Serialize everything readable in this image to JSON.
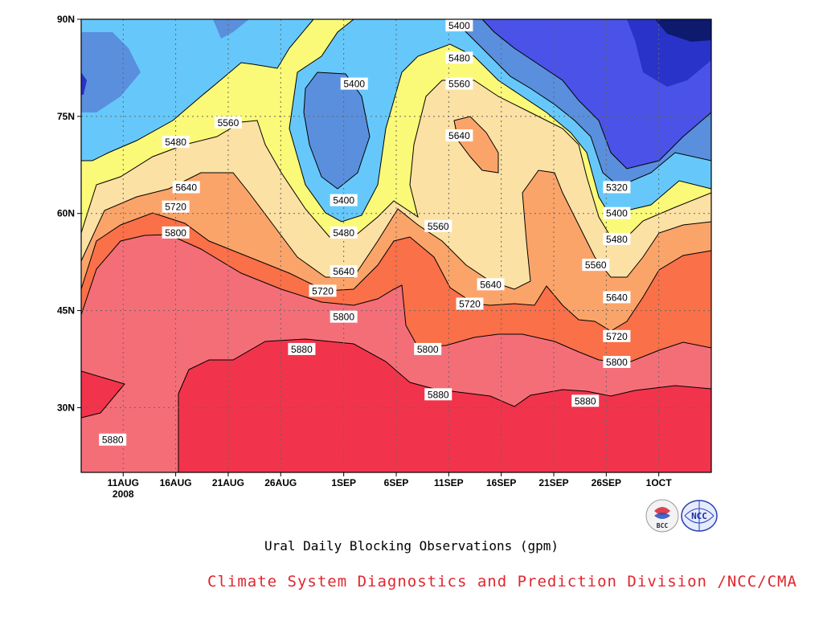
{
  "caption": "Ural Daily Blocking Observations (gpm)",
  "credit": "Climate System Diagnostics and Prediction Division /NCC/CMA",
  "logos": [
    {
      "name": "bcc-logo-icon",
      "text": "BCC"
    },
    {
      "name": "ncc-logo-icon",
      "text": "NCC"
    }
  ],
  "chart_data": {
    "type": "contour",
    "title": "",
    "units": "gpm",
    "x_ticks": [
      {
        "day": 5,
        "label": "11AUG",
        "sublabel": "2008"
      },
      {
        "day": 10,
        "label": "16AUG"
      },
      {
        "day": 15,
        "label": "21AUG"
      },
      {
        "day": 20,
        "label": "26AUG"
      },
      {
        "day": 26,
        "label": "1SEP"
      },
      {
        "day": 31,
        "label": "6SEP"
      },
      {
        "day": 36,
        "label": "11SEP"
      },
      {
        "day": 41,
        "label": "16SEP"
      },
      {
        "day": 46,
        "label": "21SEP"
      },
      {
        "day": 51,
        "label": "26SEP"
      },
      {
        "day": 56,
        "label": "1OCT"
      }
    ],
    "xlim": [
      1,
      61
    ],
    "x_start_date": "6AUG2008",
    "y_ticks": [
      {
        "lat": 30,
        "label": "30N"
      },
      {
        "lat": 45,
        "label": "45N"
      },
      {
        "lat": 60,
        "label": "60N"
      },
      {
        "lat": 75,
        "label": "75N"
      },
      {
        "lat": 90,
        "label": "90N"
      }
    ],
    "ylim": [
      20,
      90
    ],
    "grid": true,
    "levels": [
      5320,
      5400,
      5480,
      5560,
      5640,
      5720,
      5800,
      5880
    ],
    "fill_colors": [
      {
        "min": null,
        "max": 5320,
        "color": "#0d1a6e"
      },
      {
        "min": 5240,
        "max": 5320,
        "color": "#2a33c9"
      },
      {
        "min": 5320,
        "max": 5400,
        "color": "#4a52e8"
      },
      {
        "min": 5400,
        "max": 5480,
        "color": "#5a8fdd"
      },
      {
        "min": 5480,
        "max": 5560,
        "color": "#66c8fa"
      },
      {
        "min": 5560,
        "max": 5640,
        "color": "#fafa78"
      },
      {
        "min": 5640,
        "max": 5720,
        "color": "#fce1a4"
      },
      {
        "min": 5720,
        "max": 5800,
        "color": "#fba46a"
      },
      {
        "min": 5800,
        "max": 5880,
        "color": "#fa7048"
      },
      {
        "min": 5880,
        "max": 5960,
        "color": "#f46e78"
      },
      {
        "min": 5960,
        "max": null,
        "color": "#f1344b"
      }
    ],
    "contour_labels": [
      {
        "value": "5400",
        "day": 37,
        "lat": 89
      },
      {
        "value": "5480",
        "day": 37,
        "lat": 84
      },
      {
        "value": "5560",
        "day": 37,
        "lat": 80
      },
      {
        "value": "5640",
        "day": 37,
        "lat": 72
      },
      {
        "value": "5400",
        "day": 27,
        "lat": 80
      },
      {
        "value": "5560",
        "day": 15,
        "lat": 74
      },
      {
        "value": "5480",
        "day": 10,
        "lat": 71
      },
      {
        "value": "5640",
        "day": 11,
        "lat": 64
      },
      {
        "value": "5720",
        "day": 10,
        "lat": 61
      },
      {
        "value": "5800",
        "day": 10,
        "lat": 57
      },
      {
        "value": "5400",
        "day": 26,
        "lat": 62
      },
      {
        "value": "5480",
        "day": 26,
        "lat": 57
      },
      {
        "value": "5560",
        "day": 35,
        "lat": 58
      },
      {
        "value": "5640",
        "day": 26,
        "lat": 51
      },
      {
        "value": "5720",
        "day": 24,
        "lat": 48
      },
      {
        "value": "5800",
        "day": 26,
        "lat": 44
      },
      {
        "value": "5880",
        "day": 22,
        "lat": 39
      },
      {
        "value": "5800",
        "day": 34,
        "lat": 39
      },
      {
        "value": "5880",
        "day": 35,
        "lat": 32
      },
      {
        "value": "5640",
        "day": 40,
        "lat": 49
      },
      {
        "value": "5720",
        "day": 38,
        "lat": 46
      },
      {
        "value": "5320",
        "day": 52,
        "lat": 64
      },
      {
        "value": "5400",
        "day": 52,
        "lat": 60
      },
      {
        "value": "5480",
        "day": 52,
        "lat": 56
      },
      {
        "value": "5560",
        "day": 50,
        "lat": 52
      },
      {
        "value": "5640",
        "day": 52,
        "lat": 47
      },
      {
        "value": "5720",
        "day": 52,
        "lat": 41
      },
      {
        "value": "5800",
        "day": 52,
        "lat": 37
      },
      {
        "value": "5880",
        "day": 49,
        "lat": 31
      },
      {
        "value": "5880",
        "day": 4,
        "lat": 25
      }
    ]
  }
}
